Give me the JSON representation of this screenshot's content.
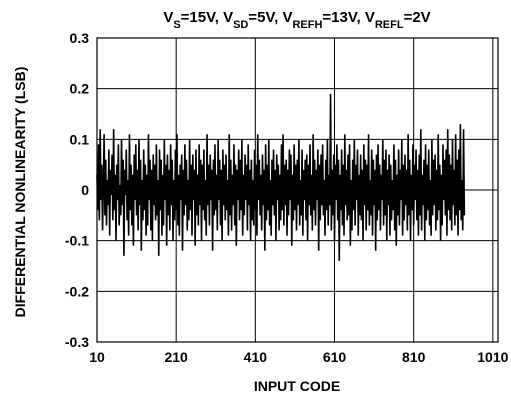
{
  "chart_data": {
    "type": "line",
    "title": {
      "parts": [
        {
          "text": "V"
        },
        {
          "text": "S",
          "sub": true
        },
        {
          "text": "=15V, V"
        },
        {
          "text": "SD",
          "sub": true
        },
        {
          "text": "=5V, V"
        },
        {
          "text": "REFH",
          "sub": true
        },
        {
          "text": "=13V, V"
        },
        {
          "text": "REFL",
          "sub": true
        },
        {
          "text": "=2V"
        }
      ]
    },
    "xlabel": "INPUT CODE",
    "ylabel": "DIFFERENTIAL NONLINEARITY (LSB)",
    "xlim": [
      10,
      1023
    ],
    "ylim": [
      -0.3,
      0.3
    ],
    "xticks": [
      {
        "value": 10,
        "label": "10"
      },
      {
        "value": 210,
        "label": "210"
      },
      {
        "value": 410,
        "label": "410"
      },
      {
        "value": 610,
        "label": "610"
      },
      {
        "value": 810,
        "label": "810"
      },
      {
        "value": 1010,
        "label": "1010"
      }
    ],
    "yticks": [
      {
        "value": 0.3,
        "label": "0.3"
      },
      {
        "value": 0.2,
        "label": "0.2"
      },
      {
        "value": 0.1,
        "label": "0.1"
      },
      {
        "value": 0,
        "label": "0"
      },
      {
        "value": -0.1,
        "label": "-0.1"
      },
      {
        "value": -0.2,
        "label": "-0.2"
      },
      {
        "value": -0.3,
        "label": "-0.3"
      }
    ],
    "grid": true,
    "series": [
      {
        "color": "#000000",
        "x_start": 10,
        "x_step": 2,
        "values": [
          0.03,
          -0.04,
          0.09,
          -0.06,
          0.12,
          -0.02,
          0.05,
          -0.08,
          0.01,
          0.11,
          -0.05,
          0.06,
          -0.07,
          0.02,
          -0.03,
          0.08,
          -0.09,
          0.04,
          -0.01,
          0.07,
          -0.06,
          0.12,
          -0.04,
          0.03,
          -0.1,
          0.05,
          -0.02,
          0.09,
          -0.07,
          0.01,
          -0.05,
          0.1,
          -0.03,
          0.06,
          -0.13,
          0.04,
          -0.01,
          0.08,
          -0.06,
          0.02,
          -0.09,
          0.11,
          -0.04,
          0.05,
          -0.07,
          0.03,
          -0.11,
          0.07,
          -0.02,
          0.09,
          -0.05,
          0.04,
          -0.08,
          0.1,
          -0.03,
          0.06,
          -0.12,
          0.02,
          -0.06,
          0.08,
          -0.04,
          0.05,
          -0.09,
          0.03,
          -0.07,
          0.11,
          -0.02,
          0.06,
          -0.08,
          0.04,
          -0.1,
          0.07,
          -0.03,
          0.05,
          -0.06,
          0.09,
          -0.05,
          0.02,
          -0.13,
          0.08,
          -0.04,
          0.06,
          -0.09,
          0.03,
          -0.07,
          0.1,
          -0.02,
          0.05,
          -0.11,
          0.07,
          -0.05,
          0.04,
          -0.08,
          0.09,
          -0.03,
          0.06,
          -0.1,
          0.02,
          -0.06,
          0.08,
          -0.04,
          0.11,
          -0.07,
          0.03,
          -0.09,
          0.05,
          -0.02,
          0.07,
          -0.12,
          0.04,
          -0.05,
          0.09,
          -0.03,
          0.06,
          -0.08,
          0.02,
          -0.06,
          0.1,
          -0.04,
          0.05,
          -0.09,
          0.07,
          -0.02,
          0.04,
          -0.11,
          0.08,
          -0.05,
          0.03,
          -0.07,
          0.09,
          -0.03,
          0.06,
          -0.1,
          0.05,
          -0.04,
          0.08,
          -0.06,
          0.02,
          -0.09,
          0.11,
          -0.03,
          0.05,
          -0.07,
          0.07,
          -0.02,
          0.04,
          -0.12,
          0.06,
          -0.05,
          0.09,
          -0.04,
          0.03,
          -0.08,
          0.1,
          -0.02,
          0.06,
          -0.07,
          0.04,
          -0.1,
          0.08,
          -0.03,
          0.05,
          -0.06,
          0.07,
          -0.04,
          0.02,
          -0.09,
          0.11,
          -0.05,
          0.06,
          -0.08,
          0.03,
          -0.03,
          0.09,
          -0.07,
          0.05,
          -0.11,
          0.04,
          -0.02,
          0.08,
          -0.06,
          0.06,
          -0.04,
          0.1,
          -0.09,
          0.03,
          -0.05,
          0.07,
          -0.02,
          0.05,
          -0.08,
          0.09,
          -0.03,
          0.04,
          -0.1,
          0.06,
          -0.06,
          0.02,
          -0.07,
          0.08,
          -0.04,
          0.05,
          -0.09,
          0.11,
          -0.02,
          0.06,
          -0.05,
          0.03,
          -0.08,
          0.07,
          -0.03,
          0.04,
          -0.12,
          0.09,
          -0.06,
          0.05,
          -0.04,
          0.1,
          -0.07,
          0.02,
          -0.09,
          0.06,
          -0.03,
          0.08,
          -0.05,
          0.04,
          -0.1,
          0.07,
          -0.02,
          0.05,
          -0.08,
          0.03,
          -0.06,
          0.09,
          -0.04,
          0.11,
          -0.07,
          0.05,
          -0.03,
          0.06,
          -0.09,
          0.04,
          -0.05,
          0.08,
          -0.02,
          0.07,
          -0.11,
          0.03,
          -0.06,
          0.09,
          -0.04,
          0.05,
          -0.08,
          0.06,
          -0.03,
          0.1,
          -0.07,
          0.02,
          -0.05,
          0.08,
          -0.09,
          0.04,
          -0.02,
          0.06,
          -0.06,
          0.07,
          -0.1,
          0.05,
          -0.03,
          0.09,
          -0.05,
          0.03,
          -0.08,
          0.11,
          -0.04,
          0.06,
          -0.07,
          0.04,
          -0.02,
          0.08,
          -0.12,
          0.05,
          -0.06,
          0.07,
          -0.03,
          0.09,
          -0.05,
          0.02,
          -0.09,
          0.06,
          -0.04,
          0.1,
          -0.07,
          0.03,
          -0.03,
          0.19,
          -0.08,
          0.04,
          -0.05,
          0.07,
          -0.1,
          0.05,
          -0.02,
          0.09,
          -0.06,
          0.06,
          -0.14,
          0.03,
          -0.04,
          0.08,
          -0.07,
          0.05,
          -0.09,
          0.11,
          -0.03,
          0.04,
          -0.06,
          0.07,
          -0.05,
          0.09,
          -0.11,
          0.02,
          -0.08,
          0.06,
          -0.04,
          0.1,
          -0.07,
          0.05,
          -0.02,
          0.08,
          -0.09,
          0.03,
          -0.05,
          0.07,
          -0.06,
          0.04,
          -0.1,
          0.09,
          -0.03,
          0.06,
          -0.08,
          0.05,
          -0.04,
          0.11,
          -0.07,
          0.02,
          -0.05,
          0.08,
          -0.09,
          0.06,
          -0.03,
          0.04,
          -0.12,
          0.07,
          -0.06,
          0.09,
          -0.04,
          0.05,
          -0.08,
          0.03,
          -0.02,
          0.1,
          -0.07,
          0.06,
          -0.05,
          0.08,
          -0.1,
          0.04,
          -0.03,
          0.07,
          -0.09,
          0.05,
          -0.06,
          0.02,
          -0.04,
          0.09,
          -0.08,
          0.06,
          -0.11,
          0.03,
          -0.05,
          0.08,
          -0.07,
          0.04,
          -0.02,
          0.1,
          -0.09,
          0.05,
          -0.06,
          0.07,
          -0.03,
          0.04,
          -0.08,
          0.11,
          -0.05,
          0.06,
          -0.1,
          0.03,
          -0.04,
          0.09,
          -0.07,
          0.05,
          -0.02,
          0.08,
          -0.06,
          0.04,
          -0.09,
          0.07,
          -0.05,
          0.12,
          -0.08,
          0.03,
          -0.03,
          0.06,
          -0.1,
          0.09,
          -0.06,
          0.05,
          -0.04,
          0.08,
          -0.07,
          0.02,
          -0.09,
          0.1,
          -0.05,
          0.06,
          -0.03,
          0.07,
          -0.08,
          0.04,
          -0.06,
          0.11,
          -0.04,
          0.05,
          -0.1,
          0.03,
          -0.07,
          0.09,
          -0.02,
          0.06,
          -0.05,
          0.08,
          -0.09,
          0.12,
          -0.04,
          0.07,
          -0.06,
          0.05,
          -0.08,
          0.1,
          -0.03,
          0.04,
          -0.07,
          0.11,
          -0.05,
          0.06,
          -0.09,
          0.08,
          -0.04,
          0.13,
          -0.06,
          0.02,
          -0.08,
          0.12,
          -0.05
        ]
      }
    ]
  }
}
